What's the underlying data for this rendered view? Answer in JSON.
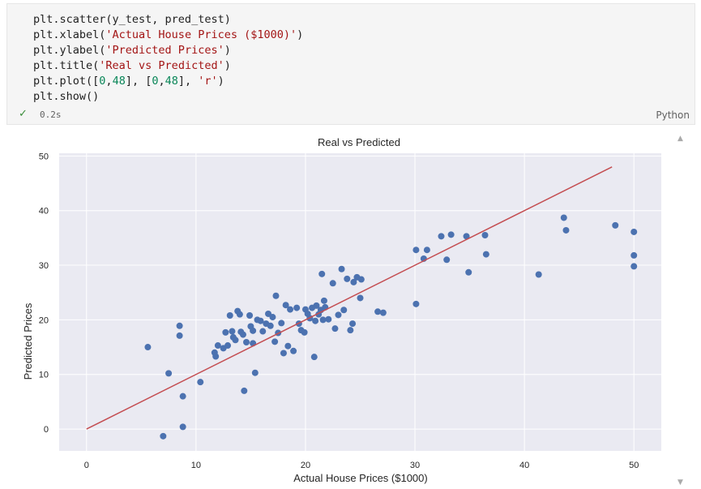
{
  "code_cell": {
    "lines": [
      [
        {
          "t": "plt.scatter(y_test, pred_test)",
          "c": ""
        }
      ],
      [
        {
          "t": "plt.xlabel(",
          "c": ""
        },
        {
          "t": "'Actual House Prices ($1000)'",
          "c": "str"
        },
        {
          "t": ")",
          "c": ""
        }
      ],
      [
        {
          "t": "plt.ylabel(",
          "c": ""
        },
        {
          "t": "'Predicted Prices'",
          "c": "str"
        },
        {
          "t": ")",
          "c": ""
        }
      ],
      [
        {
          "t": "plt.title(",
          "c": ""
        },
        {
          "t": "'Real vs Predicted'",
          "c": "str"
        },
        {
          "t": ")",
          "c": ""
        }
      ],
      [
        {
          "t": "plt.plot([",
          "c": ""
        },
        {
          "t": "0",
          "c": "num"
        },
        {
          "t": ",",
          "c": ""
        },
        {
          "t": "48",
          "c": "num"
        },
        {
          "t": "], [",
          "c": ""
        },
        {
          "t": "0",
          "c": "num"
        },
        {
          "t": ",",
          "c": ""
        },
        {
          "t": "48",
          "c": "num"
        },
        {
          "t": "], ",
          "c": ""
        },
        {
          "t": "'r'",
          "c": "str"
        },
        {
          "t": ")",
          "c": ""
        }
      ],
      [
        {
          "t": "plt.show()",
          "c": ""
        }
      ]
    ],
    "status_check": "✓",
    "exec_time": "0.2s",
    "language": "Python"
  },
  "chart_data": {
    "type": "scatter",
    "title": "Real vs Predicted",
    "xlabel": "Actual House Prices ($1000)",
    "ylabel": "Predicted Prices",
    "xlim": [
      -2.5,
      52.5
    ],
    "ylim": [
      -4,
      50.5
    ],
    "xticks": [
      0,
      10,
      20,
      30,
      40,
      50
    ],
    "yticks": [
      0,
      10,
      20,
      30,
      40,
      50
    ],
    "grid": true,
    "colors": {
      "points": "#4c72b0",
      "line": "#c44e52",
      "axes_bg": "#eaeaf2",
      "grid": "#ffffff",
      "text": "#262626"
    },
    "line": {
      "x": [
        0,
        48
      ],
      "y": [
        0,
        48
      ]
    },
    "series": [
      {
        "x": [
          5.6,
          7.0,
          7.5,
          8.5,
          8.5,
          8.8,
          8.8,
          10.4,
          11.7,
          12.0,
          11.8,
          12.7,
          12.5,
          12.9,
          13.1,
          13.4,
          13.3,
          13.8,
          13.6,
          14.0,
          14.1,
          14.3,
          14.4,
          14.6,
          14.9,
          15.2,
          15.4,
          15.0,
          15.2,
          15.6,
          15.9,
          16.1,
          16.4,
          16.6,
          16.8,
          17.0,
          17.2,
          17.3,
          17.5,
          17.8,
          18.0,
          18.4,
          18.2,
          18.6,
          18.9,
          19.2,
          19.4,
          19.6,
          19.9,
          20.0,
          20.2,
          20.4,
          20.6,
          20.8,
          20.9,
          21.0,
          21.2,
          21.4,
          21.6,
          21.7,
          21.5,
          21.8,
          22.1,
          22.5,
          22.7,
          23.0,
          23.3,
          23.5,
          23.8,
          24.1,
          24.3,
          24.4,
          24.7,
          25.0,
          25.1,
          26.6,
          27.1,
          30.1,
          30.1,
          30.8,
          31.1,
          32.4,
          32.9,
          33.3,
          34.7,
          34.9,
          36.5,
          36.4,
          41.3,
          43.6,
          43.8,
          48.3,
          50.0,
          50.0,
          50.0
        ],
        "y": [
          15.0,
          -1.3,
          10.2,
          18.9,
          17.1,
          6.0,
          0.4,
          8.6,
          14.0,
          15.3,
          13.3,
          17.7,
          14.8,
          15.3,
          20.8,
          16.8,
          17.9,
          21.6,
          16.3,
          21.0,
          17.8,
          17.3,
          7.0,
          15.9,
          20.8,
          15.7,
          10.3,
          18.8,
          18.0,
          20.0,
          19.8,
          17.9,
          19.3,
          21.1,
          18.9,
          20.5,
          16.0,
          24.4,
          17.6,
          19.4,
          13.9,
          15.2,
          22.7,
          21.9,
          14.3,
          22.2,
          19.3,
          18.1,
          17.7,
          21.9,
          21.1,
          20.3,
          22.2,
          13.2,
          19.8,
          22.6,
          21.0,
          21.8,
          20.0,
          23.5,
          28.4,
          22.3,
          20.1,
          26.7,
          18.4,
          20.9,
          29.3,
          21.8,
          27.5,
          18.1,
          19.3,
          26.9,
          27.8,
          24.0,
          27.4,
          21.5,
          21.3,
          22.9,
          32.8,
          31.2,
          32.8,
          35.3,
          31.0,
          35.6,
          35.3,
          28.7,
          32.0,
          35.5,
          28.3,
          38.7,
          36.4,
          37.3,
          36.1,
          31.8,
          29.8
        ]
      }
    ]
  }
}
